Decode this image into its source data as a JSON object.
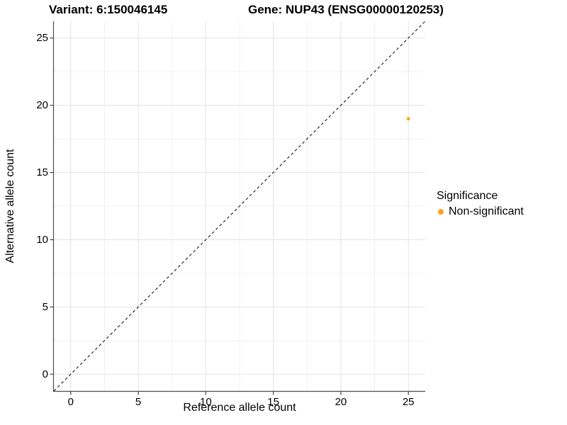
{
  "titles": {
    "variant": "Variant: 6:150046145",
    "gene": "Gene: NUP43 (ENSG00000120253)"
  },
  "legend": {
    "title": "Significance",
    "items": [
      {
        "label": "Non-significant",
        "color": "#FAA41E"
      }
    ]
  },
  "chart_data": {
    "type": "scatter",
    "title_left": "Variant: 6:150046145",
    "title_right": "Gene: NUP43 (ENSG00000120253)",
    "xlabel": "Reference allele count",
    "ylabel": "Alternative allele count",
    "xlim": [
      -1.25,
      26.25
    ],
    "ylim": [
      -1.25,
      26.25
    ],
    "x_ticks": [
      0,
      5,
      10,
      15,
      20,
      25
    ],
    "y_ticks": [
      0,
      5,
      10,
      15,
      20,
      25
    ],
    "x_minor_ticks": [
      2.5,
      7.5,
      12.5,
      17.5,
      22.5
    ],
    "y_minor_ticks": [
      2.5,
      7.5,
      12.5,
      17.5,
      22.5
    ],
    "grid": "major and minor, on white panel",
    "legend_position": "right",
    "legend_title": "Significance",
    "reference_line": {
      "type": "identity",
      "slope": 1,
      "intercept": 0,
      "style": "dashed",
      "color": "#000000"
    },
    "series": [
      {
        "name": "Non-significant",
        "color": "#FAA41E",
        "points": [
          {
            "x": 25,
            "y": 19
          }
        ]
      }
    ]
  },
  "style": {
    "background": "#FFFFFF",
    "grid_major": "#E2E2E2",
    "grid_minor": "#F0F0F0",
    "axis_line": "#4D4D4D",
    "tick_color": "#333333",
    "text_color": "#000000",
    "point_color": "#FAA41E"
  }
}
